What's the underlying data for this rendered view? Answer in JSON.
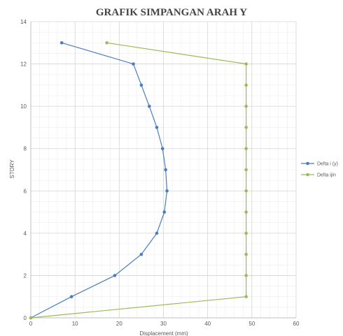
{
  "chart_data": {
    "type": "scatter",
    "title": "GRAFIK SIMPANGAN ARAH Y",
    "xlabel": "Displacement (mm)",
    "ylabel": "STORY",
    "xlim": [
      0,
      60
    ],
    "ylim": [
      0,
      14
    ],
    "x_ticks": [
      "0",
      "10",
      "20",
      "30",
      "40",
      "50",
      "60"
    ],
    "y_ticks": [
      "0",
      "2",
      "4",
      "6",
      "8",
      "10",
      "12",
      "14"
    ],
    "grid": true,
    "legend_position": "right",
    "series": [
      {
        "name": "Delta i (y)",
        "color": "#4a7ebb",
        "points": [
          {
            "x": 0,
            "y": 0
          },
          {
            "x": 9.2,
            "y": 1
          },
          {
            "x": 19,
            "y": 2
          },
          {
            "x": 25,
            "y": 3
          },
          {
            "x": 28.5,
            "y": 4
          },
          {
            "x": 30.2,
            "y": 5
          },
          {
            "x": 30.8,
            "y": 6
          },
          {
            "x": 30.5,
            "y": 7
          },
          {
            "x": 29.8,
            "y": 8
          },
          {
            "x": 28.5,
            "y": 9
          },
          {
            "x": 26.8,
            "y": 10
          },
          {
            "x": 25,
            "y": 11
          },
          {
            "x": 23.2,
            "y": 12
          },
          {
            "x": 7,
            "y": 13
          }
        ]
      },
      {
        "name": "Delta ijin",
        "color": "#9bbb59",
        "points": [
          {
            "x": 0,
            "y": 0
          },
          {
            "x": 48.7,
            "y": 1
          },
          {
            "x": 48.7,
            "y": 2
          },
          {
            "x": 48.7,
            "y": 3
          },
          {
            "x": 48.7,
            "y": 4
          },
          {
            "x": 48.7,
            "y": 5
          },
          {
            "x": 48.7,
            "y": 6
          },
          {
            "x": 48.7,
            "y": 7
          },
          {
            "x": 48.7,
            "y": 8
          },
          {
            "x": 48.7,
            "y": 9
          },
          {
            "x": 48.7,
            "y": 10
          },
          {
            "x": 48.7,
            "y": 11
          },
          {
            "x": 48.7,
            "y": 12
          },
          {
            "x": 17.2,
            "y": 13
          }
        ]
      }
    ]
  }
}
